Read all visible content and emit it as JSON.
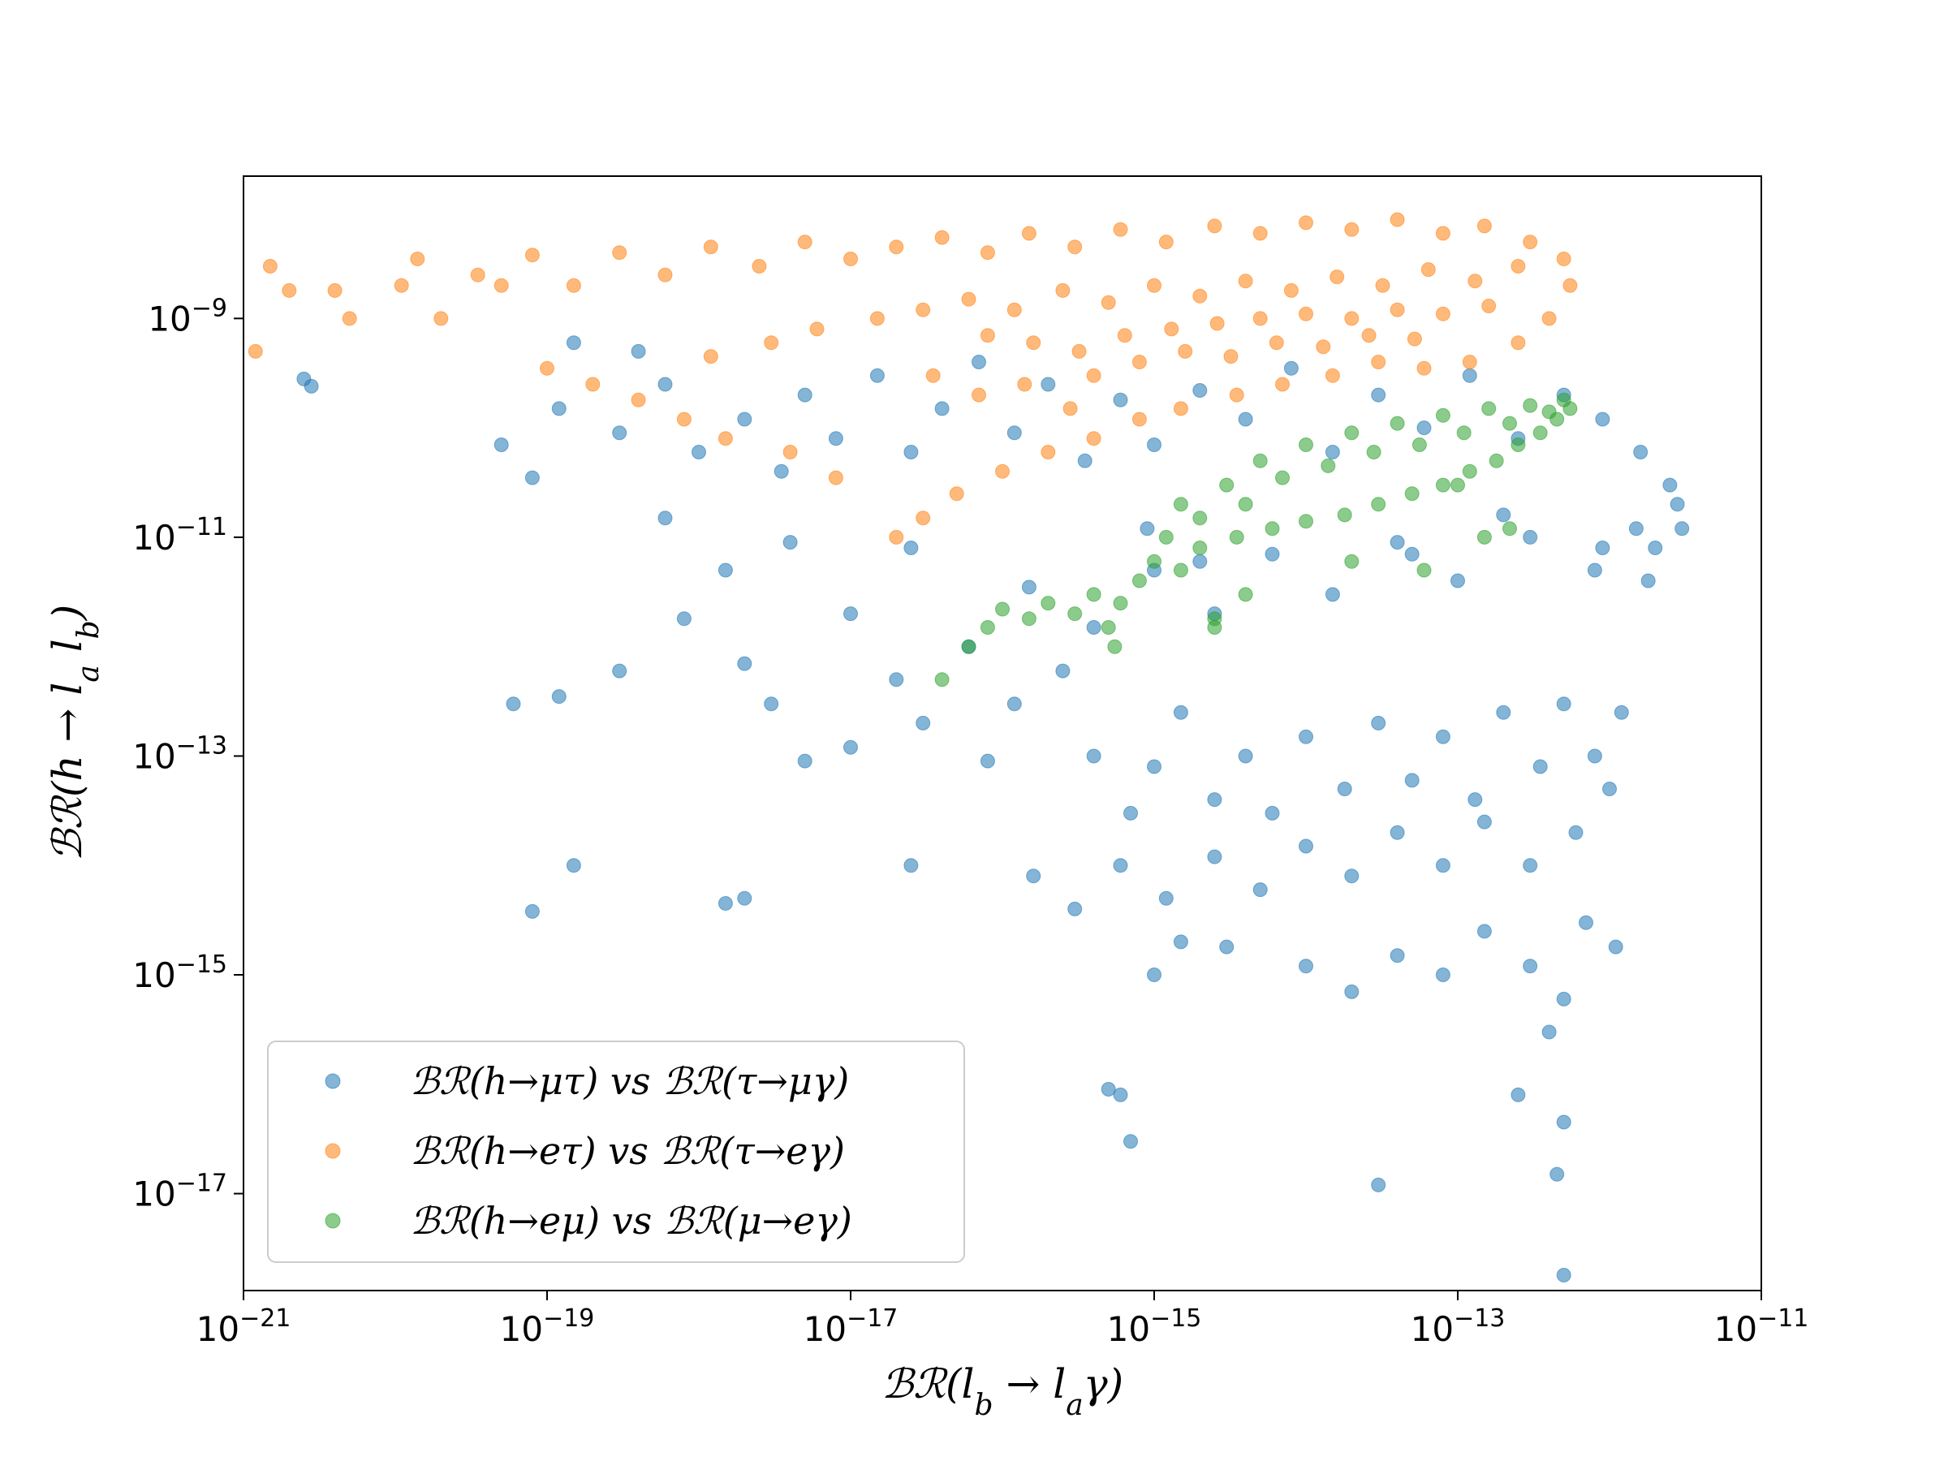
{
  "chart_data": {
    "type": "scatter",
    "title": "",
    "xlabel": "ℬℛ(l_b → l_aγ)",
    "ylabel": "ℬℛ(h → l_a l_b)",
    "xscale": "log",
    "yscale": "log",
    "xlim": [
      1e-21,
      1e-11
    ],
    "ylim": [
      1.3e-18,
      2e-08
    ],
    "x_ticks": [
      {
        "base": "10",
        "exp": "−21",
        "value": 1e-21
      },
      {
        "base": "10",
        "exp": "−19",
        "value": 1e-19
      },
      {
        "base": "10",
        "exp": "−17",
        "value": 1e-17
      },
      {
        "base": "10",
        "exp": "−15",
        "value": 1e-15
      },
      {
        "base": "10",
        "exp": "−13",
        "value": 1e-13
      },
      {
        "base": "10",
        "exp": "−11",
        "value": 1e-11
      }
    ],
    "y_ticks": [
      {
        "base": "10",
        "exp": "−9",
        "value": 1e-09
      },
      {
        "base": "10",
        "exp": "−11",
        "value": 1e-11
      },
      {
        "base": "10",
        "exp": "−13",
        "value": 1e-13
      },
      {
        "base": "10",
        "exp": "−15",
        "value": 1e-15
      },
      {
        "base": "10",
        "exp": "−17",
        "value": 1e-17
      }
    ],
    "grid": false,
    "legend_position": "lower-left",
    "series": [
      {
        "name": "ℬℛ(h→μτ) vs ℬℛ(τ→μγ)",
        "color": "#1f77b4",
        "points": [
          [
            2.5e-21,
            2.8e-10
          ],
          [
            2.8e-21,
            2.4e-10
          ],
          [
            5e-20,
            7e-11
          ],
          [
            8e-20,
            3.5e-11
          ],
          [
            1.2e-19,
            1.5e-10
          ],
          [
            1.5e-19,
            6e-10
          ],
          [
            3e-19,
            9e-11
          ],
          [
            4e-19,
            5e-10
          ],
          [
            6e-19,
            2.5e-10
          ],
          [
            1e-18,
            6e-11
          ],
          [
            2e-18,
            1.2e-10
          ],
          [
            3.5e-18,
            4e-11
          ],
          [
            5e-18,
            2e-10
          ],
          [
            8e-18,
            8e-11
          ],
          [
            1.5e-17,
            3e-10
          ],
          [
            2.5e-17,
            6e-11
          ],
          [
            4e-17,
            1.5e-10
          ],
          [
            7e-17,
            4e-10
          ],
          [
            1.2e-16,
            9e-11
          ],
          [
            2e-16,
            2.5e-10
          ],
          [
            3.5e-16,
            5e-11
          ],
          [
            6e-16,
            1.8e-10
          ],
          [
            1e-15,
            7e-11
          ],
          [
            2e-15,
            2.2e-10
          ],
          [
            4e-15,
            1.2e-10
          ],
          [
            8e-15,
            3.5e-10
          ],
          [
            1.5e-14,
            6e-11
          ],
          [
            3e-14,
            2e-10
          ],
          [
            6e-14,
            1e-10
          ],
          [
            1.2e-13,
            3e-10
          ],
          [
            2.5e-13,
            8e-11
          ],
          [
            5e-13,
            2e-10
          ],
          [
            9e-13,
            1.2e-10
          ],
          [
            1.6e-12,
            6e-11
          ],
          [
            2.5e-12,
            3e-11
          ],
          [
            3e-12,
            1.2e-11
          ],
          [
            2e-12,
            8e-12
          ],
          [
            8e-13,
            5e-12
          ],
          [
            3e-13,
            1e-11
          ],
          [
            1e-13,
            4e-12
          ],
          [
            4e-14,
            9e-12
          ],
          [
            1.5e-14,
            3e-12
          ],
          [
            6e-15,
            7e-12
          ],
          [
            2.5e-15,
            2e-12
          ],
          [
            1e-15,
            5e-12
          ],
          [
            4e-16,
            1.5e-12
          ],
          [
            1.5e-16,
            3.5e-12
          ],
          [
            6e-17,
            1e-12
          ],
          [
            2.5e-17,
            8e-12
          ],
          [
            1e-17,
            2e-12
          ],
          [
            4e-18,
            9e-12
          ],
          [
            1.5e-18,
            5e-12
          ],
          [
            6e-19,
            1.5e-11
          ],
          [
            1.2e-19,
            3.5e-13
          ],
          [
            6e-20,
            3e-13
          ],
          [
            3e-19,
            6e-13
          ],
          [
            8e-19,
            1.8e-12
          ],
          [
            2e-18,
            7e-13
          ],
          [
            3e-18,
            3e-13
          ],
          [
            5e-18,
            9e-14
          ],
          [
            1e-17,
            1.2e-13
          ],
          [
            2e-17,
            5e-13
          ],
          [
            3e-17,
            2e-13
          ],
          [
            8e-17,
            9e-14
          ],
          [
            1.2e-16,
            3e-13
          ],
          [
            2.5e-16,
            6e-13
          ],
          [
            4e-16,
            1e-13
          ],
          [
            7e-16,
            3e-14
          ],
          [
            1e-15,
            8e-14
          ],
          [
            1.5e-15,
            2.5e-13
          ],
          [
            2.5e-15,
            4e-14
          ],
          [
            4e-15,
            1e-13
          ],
          [
            6e-15,
            3e-14
          ],
          [
            1e-14,
            1.5e-13
          ],
          [
            1.8e-14,
            5e-14
          ],
          [
            3e-14,
            2e-13
          ],
          [
            5e-14,
            6e-14
          ],
          [
            8e-14,
            1.5e-13
          ],
          [
            1.3e-13,
            4e-14
          ],
          [
            2e-13,
            2.5e-13
          ],
          [
            3.5e-13,
            8e-14
          ],
          [
            5e-13,
            3e-13
          ],
          [
            8e-13,
            1e-13
          ],
          [
            1.2e-12,
            2.5e-13
          ],
          [
            1e-12,
            5e-14
          ],
          [
            6e-13,
            2e-14
          ],
          [
            3e-13,
            1e-14
          ],
          [
            1.5e-13,
            2.5e-14
          ],
          [
            8e-14,
            1e-14
          ],
          [
            4e-14,
            2e-14
          ],
          [
            2e-14,
            8e-15
          ],
          [
            1e-14,
            1.5e-14
          ],
          [
            5e-15,
            6e-15
          ],
          [
            2.5e-15,
            1.2e-14
          ],
          [
            1.2e-15,
            5e-15
          ],
          [
            6e-16,
            1e-14
          ],
          [
            3e-16,
            4e-15
          ],
          [
            1.6e-16,
            8e-15
          ],
          [
            1.5e-19,
            1e-14
          ],
          [
            2.5e-17,
            1e-14
          ],
          [
            2e-18,
            5e-15
          ],
          [
            1.5e-18,
            4.5e-15
          ],
          [
            8e-20,
            3.8e-15
          ],
          [
            1.5e-15,
            2e-15
          ],
          [
            1e-15,
            1e-15
          ],
          [
            3e-15,
            1.8e-15
          ],
          [
            1e-14,
            1.2e-15
          ],
          [
            2e-14,
            7e-16
          ],
          [
            4e-14,
            1.5e-15
          ],
          [
            8e-14,
            1e-15
          ],
          [
            1.5e-13,
            2.5e-15
          ],
          [
            3e-13,
            1.2e-15
          ],
          [
            5e-13,
            6e-16
          ],
          [
            7e-13,
            3e-15
          ],
          [
            1.1e-12,
            1.8e-15
          ],
          [
            6e-16,
            8e-17
          ],
          [
            7e-16,
            3e-17
          ],
          [
            5e-16,
            9e-17
          ],
          [
            3e-14,
            1.2e-17
          ],
          [
            2.5e-13,
            8e-17
          ],
          [
            4e-13,
            3e-16
          ],
          [
            4.5e-13,
            1.5e-17
          ],
          [
            5e-13,
            1.8e-18
          ],
          [
            5e-13,
            4.5e-17
          ],
          [
            9e-16,
            1.2e-11
          ],
          [
            2e-15,
            6e-12
          ],
          [
            5e-14,
            7e-12
          ],
          [
            2e-13,
            1.6e-11
          ],
          [
            1.5e-12,
            1.2e-11
          ],
          [
            2.8e-12,
            2e-11
          ],
          [
            1.8e-12,
            4e-12
          ],
          [
            9e-13,
            8e-12
          ]
        ]
      },
      {
        "name": "ℬℛ(h→eτ) vs ℬℛ(τ→eγ)",
        "color": "#ff7f0e",
        "points": [
          [
            1.2e-21,
            5e-10
          ],
          [
            1.5e-21,
            3e-09
          ],
          [
            2e-21,
            1.8e-09
          ],
          [
            4e-21,
            1.8e-09
          ],
          [
            5e-21,
            1e-09
          ],
          [
            1.1e-20,
            2e-09
          ],
          [
            1.4e-20,
            3.5e-09
          ],
          [
            2e-20,
            1e-09
          ],
          [
            3.5e-20,
            2.5e-09
          ],
          [
            5e-20,
            2e-09
          ],
          [
            8e-20,
            3.8e-09
          ],
          [
            1.5e-19,
            2e-09
          ],
          [
            3e-19,
            4e-09
          ],
          [
            6e-19,
            2.5e-09
          ],
          [
            1.2e-18,
            4.5e-09
          ],
          [
            2.5e-18,
            3e-09
          ],
          [
            5e-18,
            5e-09
          ],
          [
            1e-17,
            3.5e-09
          ],
          [
            2e-17,
            4.5e-09
          ],
          [
            4e-17,
            5.5e-09
          ],
          [
            8e-17,
            4e-09
          ],
          [
            1.5e-16,
            6e-09
          ],
          [
            3e-16,
            4.5e-09
          ],
          [
            6e-16,
            6.5e-09
          ],
          [
            1.2e-15,
            5e-09
          ],
          [
            2.5e-15,
            7e-09
          ],
          [
            5e-15,
            6e-09
          ],
          [
            1e-14,
            7.5e-09
          ],
          [
            2e-14,
            6.5e-09
          ],
          [
            4e-14,
            8e-09
          ],
          [
            8e-14,
            6e-09
          ],
          [
            1.5e-13,
            7e-09
          ],
          [
            3e-13,
            5e-09
          ],
          [
            5e-13,
            3.5e-09
          ],
          [
            5.5e-13,
            2e-09
          ],
          [
            4e-13,
            1e-09
          ],
          [
            2.5e-13,
            6e-10
          ],
          [
            1.2e-13,
            4e-10
          ],
          [
            6e-14,
            3.5e-10
          ],
          [
            3e-14,
            4e-10
          ],
          [
            1.5e-14,
            3e-10
          ],
          [
            7e-15,
            2.5e-10
          ],
          [
            3.5e-15,
            2e-10
          ],
          [
            1.5e-15,
            1.5e-10
          ],
          [
            8e-16,
            1.2e-10
          ],
          [
            4e-16,
            8e-11
          ],
          [
            2e-16,
            6e-11
          ],
          [
            1e-16,
            4e-11
          ],
          [
            5e-17,
            2.5e-11
          ],
          [
            3e-17,
            1.5e-11
          ],
          [
            2e-17,
            1e-11
          ],
          [
            8e-18,
            3.5e-11
          ],
          [
            4e-18,
            6e-11
          ],
          [
            1.5e-18,
            8e-11
          ],
          [
            8e-19,
            1.2e-10
          ],
          [
            4e-19,
            1.8e-10
          ],
          [
            2e-19,
            2.5e-10
          ],
          [
            1e-19,
            3.5e-10
          ],
          [
            1.2e-18,
            4.5e-10
          ],
          [
            3e-18,
            6e-10
          ],
          [
            6e-18,
            8e-10
          ],
          [
            1.5e-17,
            1e-09
          ],
          [
            3e-17,
            1.2e-09
          ],
          [
            6e-17,
            1.5e-09
          ],
          [
            1.2e-16,
            1.2e-09
          ],
          [
            2.5e-16,
            1.8e-09
          ],
          [
            5e-16,
            1.4e-09
          ],
          [
            1e-15,
            2e-09
          ],
          [
            2e-15,
            1.6e-09
          ],
          [
            4e-15,
            2.2e-09
          ],
          [
            8e-15,
            1.8e-09
          ],
          [
            1.6e-14,
            2.4e-09
          ],
          [
            3.2e-14,
            2e-09
          ],
          [
            6.4e-14,
            2.8e-09
          ],
          [
            1.3e-13,
            2.2e-09
          ],
          [
            2.5e-13,
            3e-09
          ],
          [
            8e-17,
            7e-10
          ],
          [
            1.6e-16,
            6e-10
          ],
          [
            3.2e-16,
            5e-10
          ],
          [
            6.4e-16,
            7e-10
          ],
          [
            1.3e-15,
            8e-10
          ],
          [
            2.6e-15,
            9e-10
          ],
          [
            5e-15,
            1e-09
          ],
          [
            1e-14,
            1.1e-09
          ],
          [
            2e-14,
            1e-09
          ],
          [
            4e-14,
            1.2e-09
          ],
          [
            8e-14,
            1.1e-09
          ],
          [
            1.6e-13,
            1.3e-09
          ],
          [
            4e-16,
            3e-10
          ],
          [
            8e-16,
            4e-10
          ],
          [
            1.6e-15,
            5e-10
          ],
          [
            3.2e-15,
            4.5e-10
          ],
          [
            6.4e-15,
            6e-10
          ],
          [
            1.3e-14,
            5.5e-10
          ],
          [
            2.6e-14,
            7e-10
          ],
          [
            5.2e-14,
            6.5e-10
          ],
          [
            3.5e-17,
            3e-10
          ],
          [
            7e-17,
            2e-10
          ],
          [
            1.4e-16,
            2.5e-10
          ],
          [
            2.8e-16,
            1.5e-10
          ]
        ]
      },
      {
        "name": "ℬℛ(h→eμ) vs ℬℛ(μ→eγ)",
        "color": "#2ca02c",
        "points": [
          [
            1.5e-15,
            2e-11
          ],
          [
            2e-15,
            1.5e-11
          ],
          [
            3e-15,
            3e-11
          ],
          [
            4e-15,
            2e-11
          ],
          [
            5e-15,
            5e-11
          ],
          [
            7e-15,
            3.5e-11
          ],
          [
            1e-14,
            7e-11
          ],
          [
            1.4e-14,
            4.5e-11
          ],
          [
            2e-14,
            9e-11
          ],
          [
            2.8e-14,
            6e-11
          ],
          [
            4e-14,
            1.1e-10
          ],
          [
            5.6e-14,
            7e-11
          ],
          [
            8e-14,
            1.3e-10
          ],
          [
            1.1e-13,
            9e-11
          ],
          [
            1.6e-13,
            1.5e-10
          ],
          [
            2.2e-13,
            1.1e-10
          ],
          [
            3e-13,
            1.6e-10
          ],
          [
            4e-13,
            1.4e-10
          ],
          [
            5e-13,
            1.8e-10
          ],
          [
            5.5e-13,
            1.5e-10
          ],
          [
            4.5e-13,
            1.2e-10
          ],
          [
            3.5e-13,
            9e-11
          ],
          [
            2.5e-13,
            7e-11
          ],
          [
            1.8e-13,
            5e-11
          ],
          [
            1.2e-13,
            4e-11
          ],
          [
            8e-14,
            3e-11
          ],
          [
            5e-14,
            2.5e-11
          ],
          [
            3e-14,
            2e-11
          ],
          [
            1.8e-14,
            1.6e-11
          ],
          [
            1e-14,
            1.4e-11
          ],
          [
            6e-15,
            1.2e-11
          ],
          [
            3.5e-15,
            1e-11
          ],
          [
            2e-15,
            8e-12
          ],
          [
            1.2e-15,
            1e-11
          ],
          [
            1.5e-15,
            5e-12
          ],
          [
            1e-15,
            6e-12
          ],
          [
            8e-16,
            4e-12
          ],
          [
            6e-16,
            2.5e-12
          ],
          [
            4e-16,
            3e-12
          ],
          [
            3e-16,
            2e-12
          ],
          [
            2e-16,
            2.5e-12
          ],
          [
            1.5e-16,
            1.8e-12
          ],
          [
            1e-16,
            2.2e-12
          ],
          [
            8e-17,
            1.5e-12
          ],
          [
            6e-17,
            1e-12
          ],
          [
            5e-16,
            1.5e-12
          ],
          [
            5.5e-16,
            1e-12
          ],
          [
            2.5e-15,
            1.8e-12
          ],
          [
            4e-15,
            3e-12
          ],
          [
            2e-14,
            6e-12
          ],
          [
            6e-14,
            5e-12
          ],
          [
            1.5e-13,
            1e-11
          ],
          [
            2.2e-13,
            1.2e-11
          ],
          [
            4e-17,
            5e-13
          ],
          [
            2.5e-15,
            1.5e-12
          ],
          [
            1e-13,
            3e-11
          ]
        ]
      }
    ]
  }
}
